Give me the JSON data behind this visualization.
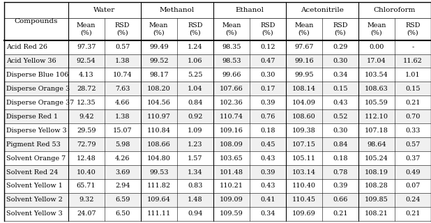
{
  "compounds": [
    "Acid Red 26",
    "Acid Yellow 36",
    "Disperse Blue 106",
    "Disperse Orange 3",
    "Disperse Orange 37",
    "Disperse Red 1",
    "Disperse Yellow 3",
    "Pigment Red 53",
    "Solvent Orange 7",
    "Solvent Red 24",
    "Solvent Yellow 1",
    "Solvent Yellow 2",
    "Solvent Yellow 3"
  ],
  "solvents": [
    "Water",
    "Methanol",
    "Ethanol",
    "Acetonitrile",
    "Chloroform"
  ],
  "data": [
    [
      [
        97.37,
        0.57
      ],
      [
        99.49,
        1.24
      ],
      [
        98.35,
        0.12
      ],
      [
        97.67,
        0.29
      ],
      [
        "0.00",
        "-"
      ]
    ],
    [
      [
        92.54,
        1.38
      ],
      [
        99.52,
        1.06
      ],
      [
        98.53,
        0.47
      ],
      [
        99.16,
        0.3
      ],
      [
        17.04,
        11.62
      ]
    ],
    [
      [
        4.13,
        10.74
      ],
      [
        98.17,
        5.25
      ],
      [
        99.66,
        0.3
      ],
      [
        99.95,
        0.34
      ],
      [
        103.54,
        1.01
      ]
    ],
    [
      [
        28.72,
        7.63
      ],
      [
        108.2,
        1.04
      ],
      [
        107.66,
        0.17
      ],
      [
        108.14,
        0.15
      ],
      [
        108.63,
        0.15
      ]
    ],
    [
      [
        12.35,
        4.66
      ],
      [
        104.56,
        0.84
      ],
      [
        102.36,
        0.39
      ],
      [
        104.09,
        0.43
      ],
      [
        105.59,
        0.21
      ]
    ],
    [
      [
        9.42,
        1.38
      ],
      [
        110.97,
        0.92
      ],
      [
        110.74,
        0.76
      ],
      [
        108.6,
        0.52
      ],
      [
        112.1,
        0.7
      ]
    ],
    [
      [
        29.59,
        15.07
      ],
      [
        110.84,
        1.09
      ],
      [
        109.16,
        0.18
      ],
      [
        109.38,
        0.3
      ],
      [
        107.18,
        0.33
      ]
    ],
    [
      [
        72.79,
        5.98
      ],
      [
        108.66,
        1.23
      ],
      [
        108.09,
        0.45
      ],
      [
        107.15,
        0.84
      ],
      [
        98.64,
        0.57
      ]
    ],
    [
      [
        12.48,
        4.26
      ],
      [
        104.8,
        1.57
      ],
      [
        103.65,
        0.43
      ],
      [
        105.11,
        0.18
      ],
      [
        105.24,
        0.37
      ]
    ],
    [
      [
        10.4,
        3.69
      ],
      [
        99.53,
        1.34
      ],
      [
        101.48,
        0.39
      ],
      [
        103.14,
        0.78
      ],
      [
        108.19,
        0.49
      ]
    ],
    [
      [
        65.71,
        2.94
      ],
      [
        111.82,
        0.83
      ],
      [
        110.21,
        0.43
      ],
      [
        110.4,
        0.39
      ],
      [
        108.28,
        0.07
      ]
    ],
    [
      [
        9.32,
        6.59
      ],
      [
        109.64,
        1.48
      ],
      [
        109.09,
        0.41
      ],
      [
        110.45,
        0.66
      ],
      [
        109.85,
        0.24
      ]
    ],
    [
      [
        24.07,
        6.5
      ],
      [
        111.11,
        0.94
      ],
      [
        109.59,
        0.34
      ],
      [
        109.69,
        0.21
      ],
      [
        108.21,
        0.21
      ]
    ]
  ],
  "background_color": "#ffffff",
  "header_color": "#ffffff",
  "row_colors": [
    "#ffffff",
    "#f0f0f0"
  ],
  "line_color": "#000000",
  "font_size": 7.2
}
